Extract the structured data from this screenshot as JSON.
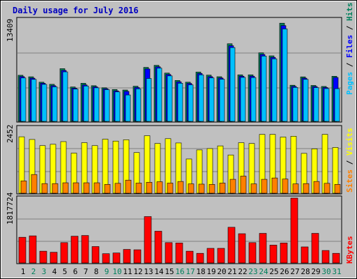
{
  "chart_data": [
    {
      "type": "bar",
      "title": "Daily usage for July 2016",
      "categories": [
        "1",
        "2",
        "3",
        "4",
        "5",
        "6",
        "7",
        "8",
        "9",
        "10",
        "11",
        "12",
        "13",
        "14",
        "15",
        "16",
        "17",
        "18",
        "19",
        "20",
        "21",
        "22",
        "23",
        "24",
        "25",
        "26",
        "27",
        "28",
        "29",
        "30",
        "31"
      ],
      "weekend_days": [
        "2",
        "3",
        "9",
        "10",
        "16",
        "17",
        "23",
        "24",
        "30",
        "31"
      ],
      "ylabel": [
        "Pages",
        "Files",
        "Hits"
      ],
      "ymax_label": "13409",
      "ylim": [
        0,
        13409
      ],
      "series": [
        {
          "name": "Hits",
          "color": "#00805c",
          "values": [
            6070,
            5870,
            5160,
            4880,
            6940,
            4530,
            5020,
            4700,
            4430,
            4200,
            4130,
            4630,
            7110,
            7380,
            6360,
            5390,
            5160,
            6500,
            6090,
            5880,
            10220,
            6130,
            6130,
            9030,
            8630,
            12930,
            4760,
            5860,
            4730,
            4600,
            5940
          ]
        },
        {
          "name": "Files",
          "color": "#0000ff",
          "values": [
            5900,
            5690,
            5020,
            4700,
            6710,
            4380,
            4800,
            4550,
            4300,
            4020,
            3950,
            4460,
            6900,
            7190,
            6180,
            5210,
            5000,
            6310,
            5890,
            5710,
            9960,
            5950,
            5950,
            8810,
            8430,
            12610,
            4610,
            5690,
            4590,
            4460,
            5780
          ]
        },
        {
          "name": "Pages",
          "color": "#00c0ff",
          "values": [
            5720,
            5530,
            4870,
            4550,
            6520,
            4250,
            4660,
            4420,
            4180,
            3880,
            3480,
            4290,
            5650,
            7010,
            5990,
            5020,
            4810,
            6130,
            5720,
            5550,
            9720,
            5790,
            5770,
            8600,
            8240,
            12180,
            4470,
            5530,
            4450,
            4320,
            4310
          ]
        }
      ]
    },
    {
      "type": "bar",
      "ylabel": [
        "Sites",
        "Visits"
      ],
      "ymax_label": "2452",
      "ylim": [
        0,
        2452
      ],
      "series": [
        {
          "name": "Visits",
          "color": "#ffff00",
          "values": [
            2110,
            2010,
            1780,
            1830,
            1930,
            1500,
            1890,
            1780,
            2020,
            1950,
            2000,
            1520,
            2150,
            1860,
            2040,
            1880,
            1280,
            1620,
            1670,
            1770,
            1430,
            1890,
            1860,
            2200,
            2200,
            2100,
            2130,
            1490,
            1660,
            2200,
            1710
          ]
        },
        {
          "name": "Sites",
          "color": "#ff8000",
          "values": [
            460,
            700,
            360,
            360,
            390,
            390,
            390,
            390,
            330,
            370,
            490,
            380,
            410,
            430,
            380,
            440,
            350,
            340,
            330,
            380,
            520,
            640,
            350,
            520,
            570,
            530,
            350,
            360,
            440,
            370,
            330
          ]
        }
      ]
    },
    {
      "type": "bar",
      "ylabel": [
        "KBytes"
      ],
      "ymax_label": "1817724",
      "ylim": [
        0,
        1817724
      ],
      "series": [
        {
          "name": "KBytes",
          "color": "#ff0000",
          "values": [
            720000,
            760000,
            330000,
            300000,
            570000,
            750000,
            770000,
            460000,
            260000,
            280000,
            380000,
            370000,
            1300000,
            890000,
            570000,
            560000,
            330000,
            270000,
            410000,
            410000,
            1000000,
            820000,
            570000,
            830000,
            500000,
            560000,
            1817724,
            450000,
            830000,
            350000,
            270000
          ]
        }
      ]
    }
  ],
  "colors": {
    "panel_bg": "#c0c0c0",
    "title": "#0000c0",
    "weekday_label": "#000000",
    "weekend_label": "#00805c",
    "label_pages": "#00c0ff",
    "label_files": "#0000ff",
    "label_hits": "#00805c",
    "label_sites": "#ff8000",
    "label_visits": "#ffff00",
    "label_kbytes": "#ff0000",
    "separator": "#000000"
  }
}
